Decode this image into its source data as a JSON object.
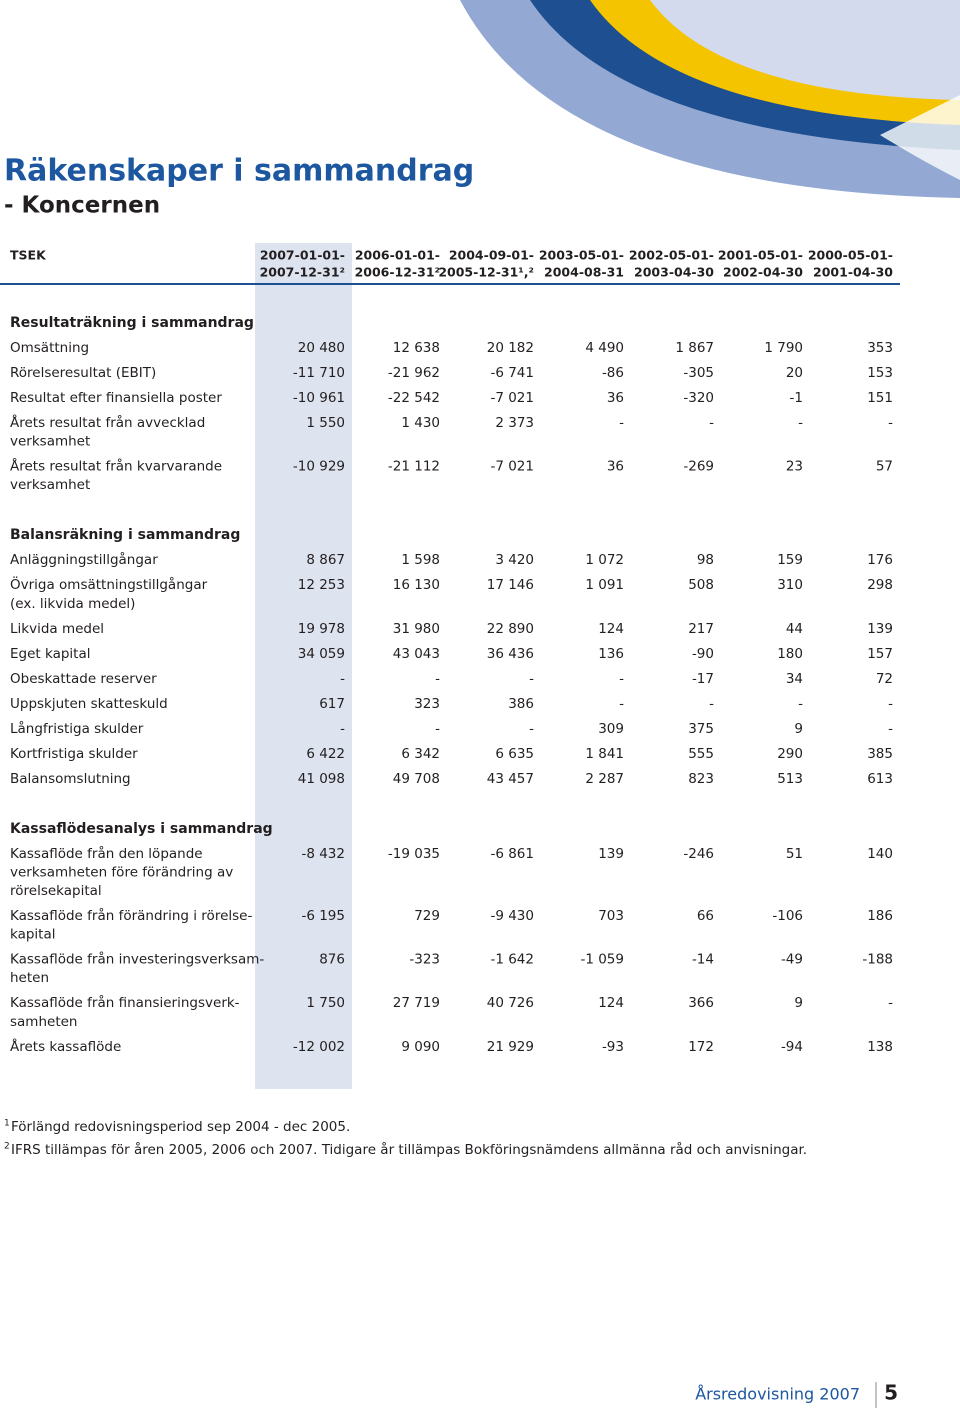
{
  "header": {
    "title": "Räkenskaper i sammandrag",
    "subtitle": "- Koncernen"
  },
  "table": {
    "unit": "TSEK",
    "columns": [
      [
        "2007-01-01-",
        "2007-12-31²"
      ],
      [
        "2006-01-01-",
        "2006-12-31²"
      ],
      [
        "2004-09-01-",
        "2005-12-31¹,²"
      ],
      [
        "2003-05-01-",
        "2004-08-31"
      ],
      [
        "2002-05-01-",
        "2003-04-30"
      ],
      [
        "2001-05-01-",
        "2002-04-30"
      ],
      [
        "2000-05-01-",
        "2001-04-30"
      ]
    ],
    "sections": [
      {
        "title": "Resultaträkning i sammandrag",
        "rows": [
          {
            "label": [
              "Omsättning"
            ],
            "values": [
              "20 480",
              "12 638",
              "20 182",
              "4 490",
              "1 867",
              "1 790",
              "353"
            ]
          },
          {
            "label": [
              "Rörelseresultat (EBIT)"
            ],
            "values": [
              "-11 710",
              "-21 962",
              "-6 741",
              "-86",
              "-305",
              "20",
              "153"
            ]
          },
          {
            "label": [
              "Resultat efter finansiella poster"
            ],
            "values": [
              "-10 961",
              "-22 542",
              "-7 021",
              "36",
              "-320",
              "-1",
              "151"
            ]
          },
          {
            "label": [
              "Årets resultat från avvecklad",
              "verksamhet"
            ],
            "values": [
              "1 550",
              "1 430",
              "2 373",
              "-",
              "-",
              "-",
              "-"
            ]
          },
          {
            "label": [
              "Årets resultat från kvarvarande",
              "verksamhet"
            ],
            "values": [
              "-10 929",
              "-21 112",
              "-7 021",
              "36",
              "-269",
              "23",
              "57"
            ]
          }
        ]
      },
      {
        "title": "Balansräkning i sammandrag",
        "rows": [
          {
            "label": [
              "Anläggningstillgångar"
            ],
            "values": [
              "8 867",
              "1 598",
              "3 420",
              "1 072",
              "98",
              "159",
              "176"
            ]
          },
          {
            "label": [
              "Övriga omsättningstillgångar",
              "(ex. likvida medel)"
            ],
            "values": [
              "12 253",
              "16 130",
              "17 146",
              "1 091",
              "508",
              "310",
              "298"
            ]
          },
          {
            "label": [
              "Likvida medel"
            ],
            "values": [
              "19 978",
              "31 980",
              "22 890",
              "124",
              "217",
              "44",
              "139"
            ]
          },
          {
            "label": [
              "Eget kapital"
            ],
            "values": [
              "34 059",
              "43 043",
              "36 436",
              "136",
              "-90",
              "180",
              "157"
            ]
          },
          {
            "label": [
              "Obeskattade reserver"
            ],
            "values": [
              "-",
              "-",
              "-",
              "-",
              "-17",
              "34",
              "72"
            ]
          },
          {
            "label": [
              "Uppskjuten skatteskuld"
            ],
            "values": [
              "617",
              "323",
              "386",
              "-",
              "-",
              "-",
              "-"
            ]
          },
          {
            "label": [
              "Långfristiga skulder"
            ],
            "values": [
              "-",
              "-",
              "-",
              "309",
              "375",
              "9",
              "-"
            ]
          },
          {
            "label": [
              "Kortfristiga skulder"
            ],
            "values": [
              "6 422",
              "6 342",
              "6 635",
              "1 841",
              "555",
              "290",
              "385"
            ]
          },
          {
            "label": [
              "Balansomslutning"
            ],
            "values": [
              "41 098",
              "49 708",
              "43 457",
              "2 287",
              "823",
              "513",
              "613"
            ]
          }
        ]
      },
      {
        "title": "Kassaflödesanalys i sammandrag",
        "rows": [
          {
            "label": [
              "Kassaflöde från den löpande",
              "verksamheten före förändring av",
              "rörelsekapital"
            ],
            "values": [
              "-8 432",
              "-19 035",
              "-6 861",
              "139",
              "-246",
              "51",
              "140"
            ]
          },
          {
            "label": [
              "Kassaflöde från förändring i rörelse-",
              "kapital"
            ],
            "values": [
              "-6 195",
              "729",
              "-9 430",
              "703",
              "66",
              "-106",
              "186"
            ]
          },
          {
            "label": [
              "Kassaflöde från investeringsverksam-",
              "heten"
            ],
            "values": [
              "876",
              "-323",
              "-1 642",
              "-1 059",
              "-14",
              "-49",
              "-188"
            ]
          },
          {
            "label": [
              "Kassaflöde från finansieringsverk-",
              "samheten"
            ],
            "values": [
              "1 750",
              "27 719",
              "40 726",
              "124",
              "366",
              "9",
              "-"
            ]
          },
          {
            "label": [
              "Årets kassaflöde"
            ],
            "values": [
              "-12 002",
              "9 090",
              "21 929",
              "-93",
              "172",
              "-94",
              "138"
            ]
          }
        ]
      }
    ]
  },
  "footnotes": [
    {
      "mark": "1",
      "text": "Förlängd redovisningsperiod sep 2004 - dec 2005."
    },
    {
      "mark": "2",
      "text": "IFRS tillämpas för åren 2005, 2006 och 2007. Tidigare år tillämpas Bokföringsnämdens allmänna råd och anvisningar."
    }
  ],
  "footer": {
    "title": "Årsredovisning 2007",
    "page": "5"
  }
}
